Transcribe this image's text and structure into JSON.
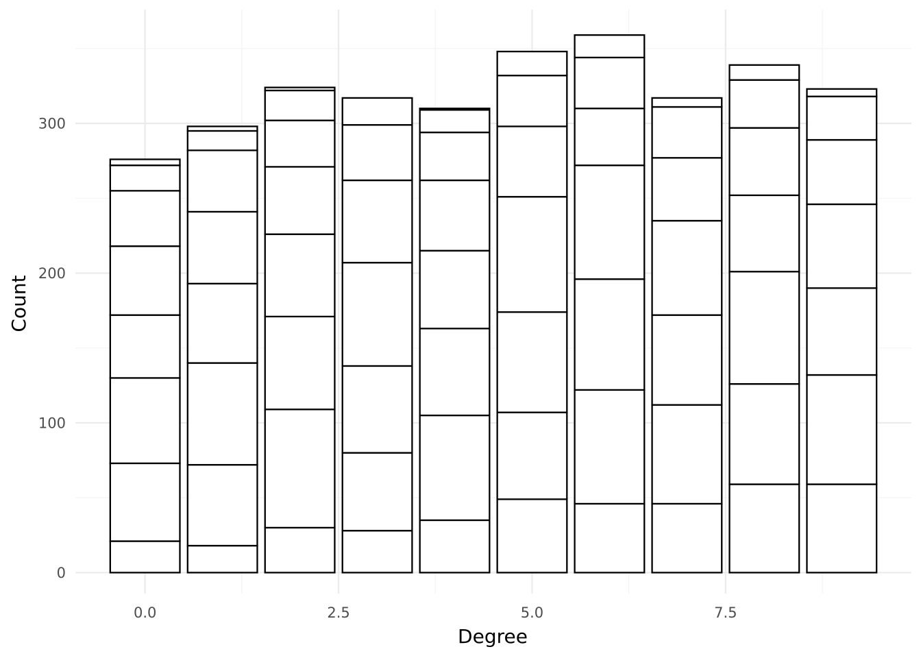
{
  "chart_data": {
    "type": "bar",
    "stacked": true,
    "title": "",
    "xlabel": "Degree",
    "ylabel": "Count",
    "x": [
      0,
      1,
      2,
      3,
      4,
      5,
      6,
      7,
      8,
      9
    ],
    "stack_boundaries": [
      [
        21,
        73,
        130,
        172,
        218,
        255,
        272,
        276
      ],
      [
        18,
        72,
        140,
        193,
        241,
        282,
        295,
        298
      ],
      [
        30,
        109,
        171,
        226,
        271,
        302,
        322,
        324
      ],
      [
        28,
        80,
        138,
        207,
        262,
        299,
        317
      ],
      [
        35,
        105,
        163,
        215,
        262,
        294,
        309,
        310
      ],
      [
        49,
        107,
        174,
        251,
        298,
        332,
        348
      ],
      [
        46,
        122,
        196,
        272,
        310,
        344,
        359
      ],
      [
        46,
        112,
        172,
        235,
        277,
        311,
        317
      ],
      [
        59,
        126,
        201,
        252,
        297,
        329,
        339
      ],
      [
        59,
        132,
        190,
        246,
        289,
        318,
        323
      ]
    ],
    "totals": [
      276,
      298,
      324,
      317,
      310,
      348,
      359,
      317,
      339,
      323
    ],
    "xlim": [
      -0.9,
      9.9
    ],
    "ylim": [
      -14,
      376
    ],
    "xticks": [
      0,
      2.5,
      5,
      7.5
    ],
    "xtick_labels": [
      "0.0",
      "2.5",
      "5.0",
      "7.5"
    ],
    "yticks": [
      0,
      100,
      200,
      300
    ],
    "ytick_labels": [
      "0",
      "100",
      "200",
      "300"
    ],
    "grid": true,
    "legend": "none",
    "colors": {
      "bar_fill": "#ffffff",
      "bar_outline": "#000000",
      "grid_major": "#ebebeb",
      "grid_minor": "#f4f4f4",
      "tick_text": "#4d4d4d",
      "axis_title_text": "#000000"
    }
  }
}
